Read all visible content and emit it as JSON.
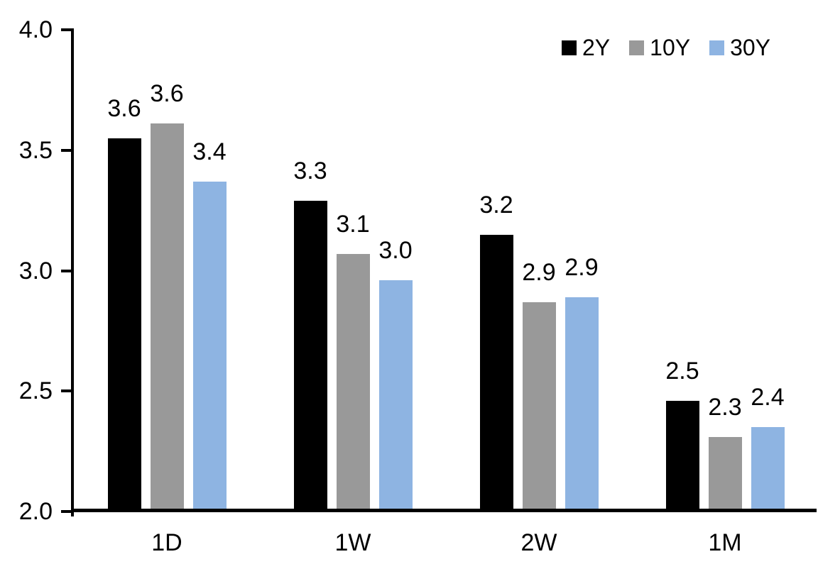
{
  "chart_data": {
    "type": "bar",
    "title": "",
    "xlabel": "",
    "ylabel": "",
    "categories": [
      "1D",
      "1W",
      "2W",
      "1M"
    ],
    "series": [
      {
        "name": "2Y",
        "color": "#000000",
        "values": [
          3.55,
          3.29,
          3.15,
          2.46
        ],
        "labels": [
          "3.6",
          "3.3",
          "3.2",
          "2.5"
        ]
      },
      {
        "name": "10Y",
        "color": "#999999",
        "values": [
          3.61,
          3.07,
          2.87,
          2.31
        ],
        "labels": [
          "3.6",
          "3.1",
          "2.9",
          "2.3"
        ]
      },
      {
        "name": "30Y",
        "color": "#8EB4E2",
        "values": [
          3.37,
          2.96,
          2.89,
          2.35
        ],
        "labels": [
          "3.4",
          "3.0",
          "2.9",
          "2.4"
        ]
      }
    ],
    "ylim": [
      2.0,
      4.0
    ],
    "yticks": [
      2.0,
      2.5,
      3.0,
      3.5,
      4.0
    ],
    "ytick_labels": [
      "2.0",
      "2.5",
      "3.0",
      "3.5",
      "4.0"
    ],
    "grid": false,
    "legend_position": "top-right",
    "axis_color": "#000000",
    "text_color": "#000000",
    "background": "#FFFFFF"
  }
}
